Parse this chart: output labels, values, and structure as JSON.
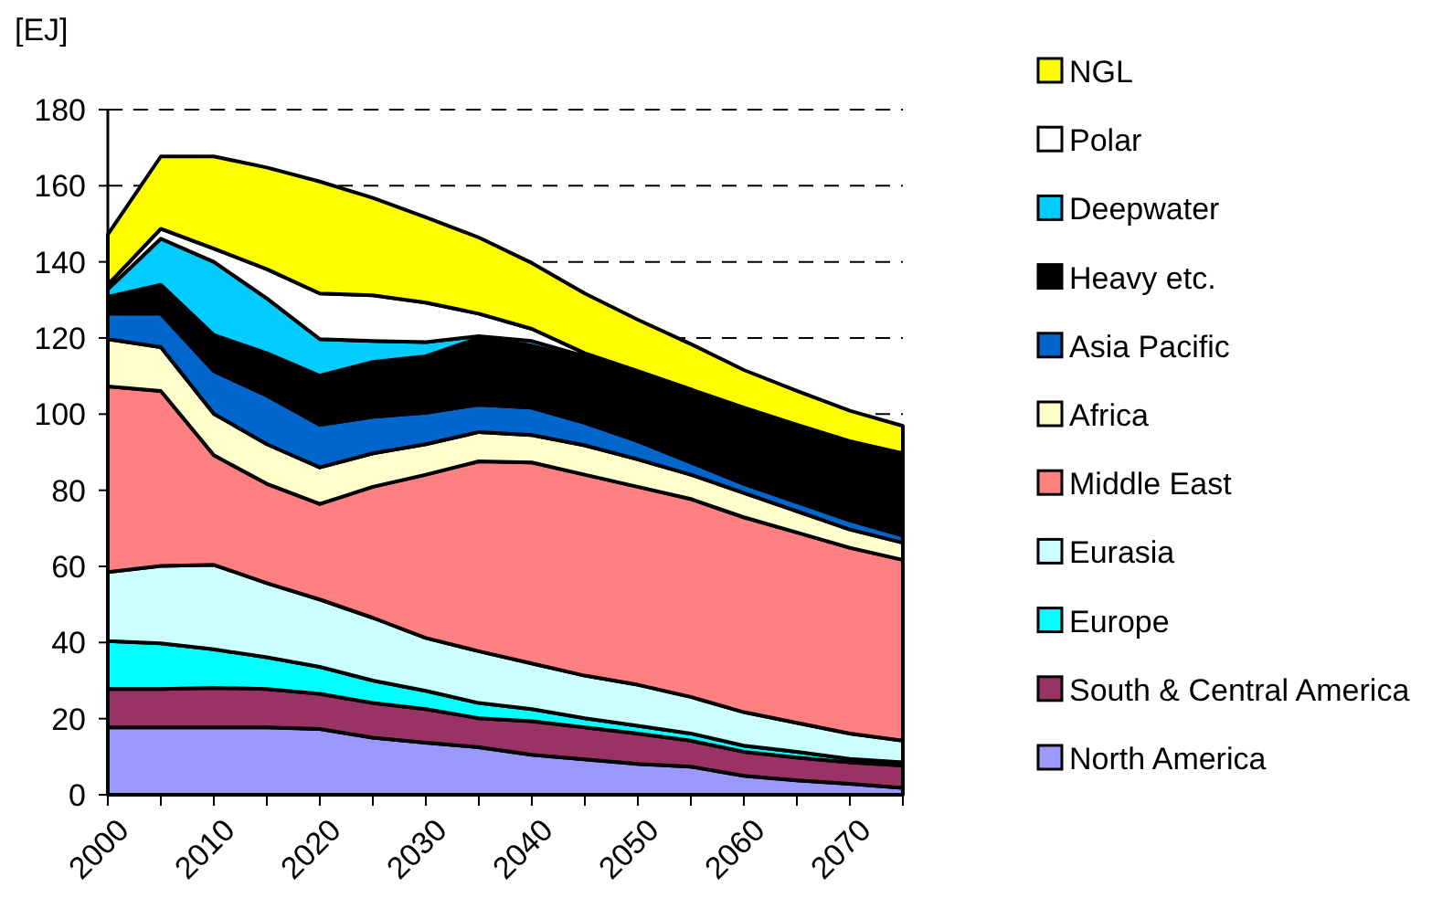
{
  "chart_data": {
    "type": "area",
    "stacked": true,
    "ylabel": "[EJ]",
    "x": [
      2000,
      2005,
      2010,
      2015,
      2020,
      2025,
      2030,
      2035,
      2040,
      2045,
      2050,
      2055,
      2060,
      2065,
      2070,
      2075
    ],
    "xlim": [
      2000,
      2075
    ],
    "xticks": [
      2000,
      {
        "value": 2005,
        "label": null
      },
      2010,
      {
        "value": 2015,
        "label": null
      },
      2020,
      {
        "value": 2025,
        "label": null
      },
      2030,
      {
        "value": 2035,
        "label": null
      },
      2040,
      {
        "value": 2045,
        "label": null
      },
      2050,
      {
        "value": 2055,
        "label": null
      },
      2060,
      {
        "value": 2065,
        "label": null
      },
      2070,
      {
        "value": 2075,
        "label": null
      }
    ],
    "ylim": [
      0,
      180
    ],
    "yticks": [
      0,
      20,
      40,
      60,
      80,
      100,
      120,
      140,
      160,
      180
    ],
    "grid": "y",
    "legend": "right",
    "series": [
      {
        "name": "North America",
        "color": "#9999ff",
        "values": [
          17.7,
          17.7,
          17.7,
          17.7,
          17.3,
          15,
          13.7,
          12.5,
          10.5,
          9.3,
          8.1,
          7.4,
          5,
          3.8,
          2.9,
          1.8
        ]
      },
      {
        "name": "South & Central America",
        "color": "#993366",
        "values": [
          10.1,
          10.1,
          10.4,
          10.1,
          9.2,
          9.1,
          8.8,
          7.6,
          8.8,
          8.4,
          8,
          6.8,
          6.3,
          6,
          5.6,
          5.9
        ]
      },
      {
        "name": "Europe",
        "color": "#00ffff",
        "values": [
          12.6,
          12,
          10.1,
          8.3,
          7.1,
          5.9,
          4.8,
          4,
          3.2,
          2.4,
          2,
          1.9,
          1.6,
          1.5,
          0.9,
          0.8
        ]
      },
      {
        "name": "Eurasia",
        "color": "#ccffff",
        "values": [
          18.1,
          20.3,
          22.2,
          19.5,
          17.7,
          16.5,
          13.9,
          13.6,
          12,
          11.2,
          10.8,
          9.6,
          8.8,
          7.6,
          6.7,
          5.7
        ]
      },
      {
        "name": "Middle East",
        "color": "#ff8080",
        "values": [
          48.8,
          46,
          28.8,
          26.1,
          25.1,
          34.4,
          42.9,
          49.9,
          52.8,
          52.8,
          52,
          52,
          51.2,
          50,
          48.8,
          47.5
        ]
      },
      {
        "name": "Africa",
        "color": "#ffffcc",
        "values": [
          12.4,
          11.5,
          10.9,
          10.4,
          9.6,
          8.8,
          8,
          7.7,
          7.2,
          7.7,
          7.2,
          6.4,
          6.4,
          5.6,
          4.8,
          4.5
        ]
      },
      {
        "name": "Asia Pacific",
        "color": "#0066cc",
        "values": [
          6.7,
          8.8,
          11.2,
          12.8,
          11.2,
          9.6,
          8.3,
          7.2,
          7.2,
          5.9,
          4.8,
          3.2,
          2.4,
          2.4,
          2.4,
          1.9
        ]
      },
      {
        "name": "Heavy etc.",
        "color": "#000000",
        "values": [
          4.4,
          7.6,
          9.5,
          11.1,
          12.9,
          14.4,
          14.8,
          17.5,
          16.3,
          16.8,
          18.4,
          19.2,
          20,
          20.3,
          20.8,
          21.6
        ]
      },
      {
        "name": "Deepwater",
        "color": "#00ccff",
        "values": [
          2,
          12.1,
          19.2,
          14.4,
          9.6,
          5.5,
          3.7,
          0.5,
          1.2,
          0.7,
          0,
          0,
          0,
          0,
          0,
          0
        ]
      },
      {
        "name": "Polar",
        "color": "#ffffff",
        "values": [
          1.2,
          2.6,
          3.5,
          7.7,
          12,
          12,
          10.4,
          5.9,
          3.2,
          0.8,
          0,
          0,
          0,
          0,
          0,
          0
        ]
      },
      {
        "name": "NGL",
        "color": "#ffff00",
        "values": [
          13.2,
          19,
          24.2,
          26.7,
          29.4,
          25.6,
          22.4,
          20,
          17.3,
          15.7,
          13.5,
          11.9,
          9.9,
          8.9,
          8,
          7.2
        ]
      }
    ]
  }
}
